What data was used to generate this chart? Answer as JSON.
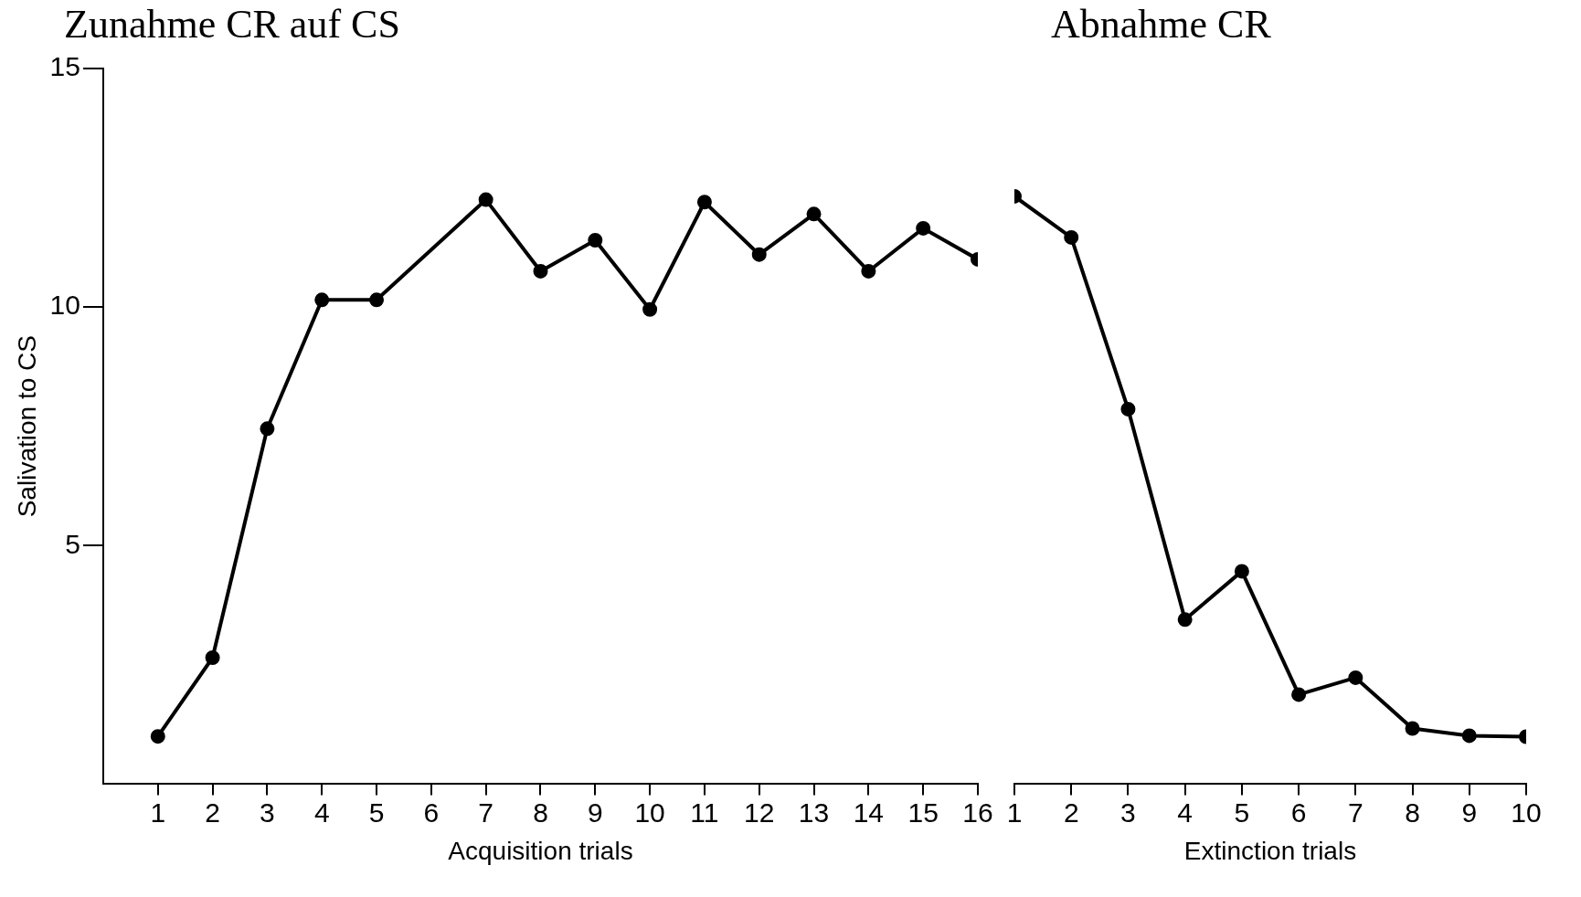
{
  "chart_data": [
    {
      "type": "line",
      "title": "Zunahme CR auf CS",
      "xlabel": "Acquisition trials",
      "ylabel": "Salivation to CS",
      "x": [
        1,
        2,
        3,
        4,
        5,
        7,
        8,
        9,
        10,
        11,
        12,
        13,
        14,
        15,
        16
      ],
      "values": [
        1.0,
        2.65,
        7.45,
        10.15,
        10.15,
        12.25,
        10.75,
        11.4,
        9.95,
        12.2,
        11.1,
        11.95,
        10.75,
        11.65,
        11.0
      ],
      "color": "#000000",
      "xlim": [
        0,
        16
      ],
      "xticks": [
        1,
        2,
        3,
        4,
        5,
        6,
        7,
        8,
        9,
        10,
        11,
        12,
        13,
        14,
        15,
        16
      ],
      "ylim": [
        0,
        15
      ],
      "yticks": [
        5,
        10,
        15
      ],
      "marker": "circle",
      "line_style": "solid",
      "grid": false
    },
    {
      "type": "line",
      "title": "Abnahme CR",
      "xlabel": "Extinction trials",
      "x": [
        1,
        2,
        3,
        4,
        5,
        6,
        7,
        8,
        9,
        10
      ],
      "values": [
        12.15,
        11.3,
        7.75,
        3.4,
        4.4,
        1.85,
        2.2,
        1.15,
        1.0,
        0.98
      ],
      "color": "#000000",
      "xlim": [
        1,
        10
      ],
      "xticks": [
        1,
        2,
        3,
        4,
        5,
        6,
        7,
        8,
        9,
        10
      ],
      "ylim": [
        0,
        15
      ],
      "marker": "circle",
      "line_style": "solid",
      "grid": false,
      "tick_labels": "x"
    }
  ]
}
